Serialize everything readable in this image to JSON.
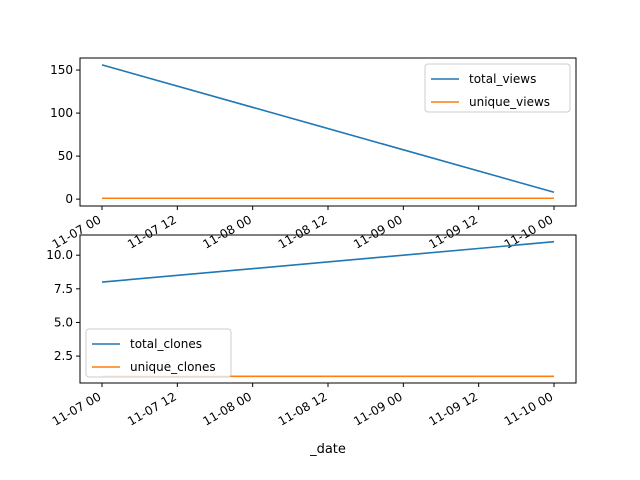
{
  "chart_data": [
    {
      "type": "line",
      "x": [
        "11-07 00",
        "11-10 00"
      ],
      "xticks": [
        "11-07 00",
        "11-07 12",
        "11-08 00",
        "11-08 12",
        "11-09 00",
        "11-09 12",
        "11-10 00"
      ],
      "xlabel": "",
      "ylabel": "",
      "ylim": [
        -8,
        164
      ],
      "yticks": [
        "0",
        "50",
        "100",
        "150"
      ],
      "ytick_values": [
        0,
        50,
        100,
        150
      ],
      "legend_position": "top-right",
      "series": [
        {
          "name": "total_views",
          "color": "#1f77b4",
          "values": [
            156,
            8
          ]
        },
        {
          "name": "unique_views",
          "color": "#ff7f0e",
          "values": [
            1,
            1
          ]
        }
      ]
    },
    {
      "type": "line",
      "x": [
        "11-07 00",
        "11-10 00"
      ],
      "xticks": [
        "11-07 00",
        "11-07 12",
        "11-08 00",
        "11-08 12",
        "11-09 00",
        "11-09 12",
        "11-10 00"
      ],
      "xlabel": "_date",
      "ylabel": "",
      "ylim": [
        0.5,
        11.5
      ],
      "yticks": [
        "2.5",
        "5.0",
        "7.5",
        "10.0"
      ],
      "ytick_values": [
        2.5,
        5.0,
        7.5,
        10.0
      ],
      "legend_position": "bottom-left",
      "series": [
        {
          "name": "total_clones",
          "color": "#1f77b4",
          "values": [
            8,
            11
          ]
        },
        {
          "name": "unique_clones",
          "color": "#ff7f0e",
          "values": [
            1,
            1
          ]
        }
      ]
    }
  ]
}
